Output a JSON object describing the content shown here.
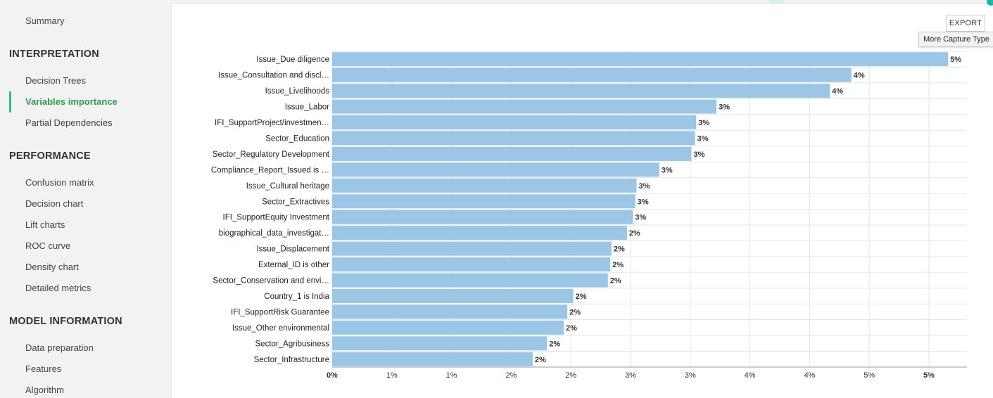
{
  "sidebar": {
    "summary": "Summary",
    "sections": [
      {
        "title": "INTERPRETATION",
        "items": [
          "Decision Trees",
          "Variables importance",
          "Partial Dependencies"
        ]
      },
      {
        "title": "PERFORMANCE",
        "items": [
          "Confusion matrix",
          "Decision chart",
          "Lift charts",
          "ROC curve",
          "Density chart",
          "Detailed metrics"
        ]
      },
      {
        "title": "MODEL INFORMATION",
        "items": [
          "Data preparation",
          "Features",
          "Algorithm"
        ]
      }
    ],
    "active_item": "Variables importance"
  },
  "toolbar": {
    "export_label": "EXPORT",
    "tooltip": "More Capture Type"
  },
  "colors": {
    "bar": "#9cc6e6",
    "accent": "#2ec27e",
    "grid": "#e5e5e5"
  },
  "chart_data": {
    "type": "bar",
    "orientation": "horizontal",
    "categories": [
      "Issue_Due diligence",
      "Issue_Consultation and discl…",
      "Issue_Livelihoods",
      "Issue_Labor",
      "IFI_SupportProject/investmen…",
      "Sector_Education",
      "Sector_Regulatory Development",
      "Compliance_Report_Issued is …",
      "Issue_Cultural heritage",
      "Sector_Extractives",
      "IFI_SupportEquity Investment",
      "biographical_data_investigat…",
      "Issue_Displacement",
      "External_ID is other",
      "Sector_Conservation and envi…",
      "Country_1 is India",
      "IFI_SupportRisk Guarantee",
      "Issue_Other environmental",
      "Sector_Agribusiness",
      "Sector_Infrastructure"
    ],
    "values": [
      5.16,
      4.35,
      4.17,
      3.22,
      3.05,
      3.04,
      3.01,
      2.74,
      2.55,
      2.54,
      2.52,
      2.47,
      2.34,
      2.33,
      2.31,
      2.02,
      1.97,
      1.94,
      1.8,
      1.68
    ],
    "data_labels": [
      "5%",
      "4%",
      "4%",
      "3%",
      "3%",
      "3%",
      "3%",
      "3%",
      "3%",
      "3%",
      "3%",
      "2%",
      "2%",
      "2%",
      "2%",
      "2%",
      "2%",
      "2%",
      "2%",
      "2%"
    ],
    "x_ticks": [
      "0%",
      "1%",
      "1%",
      "2%",
      "2%",
      "3%",
      "3%",
      "4%",
      "4%",
      "5%",
      "5%"
    ],
    "x_tick_values": [
      0,
      0.5,
      1.0,
      1.5,
      2.0,
      2.5,
      3.0,
      3.5,
      4.0,
      4.5,
      5.0
    ],
    "xlim": [
      0,
      5.2
    ],
    "grid": true
  }
}
